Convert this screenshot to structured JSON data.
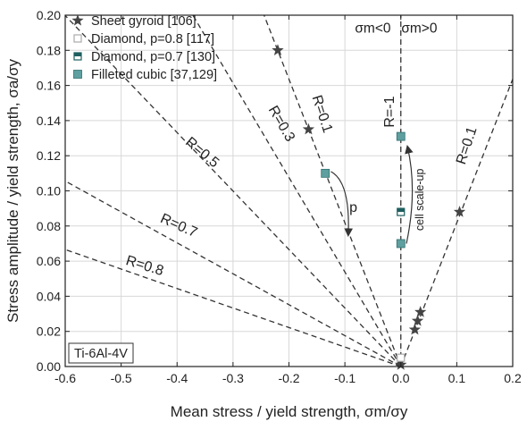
{
  "chart_data": {
    "type": "scatter",
    "xlabel": "Mean stress / yield strength, σm/σy",
    "ylabel": "Stress amplitude / yield strength, σa/σy",
    "xlim": [
      -0.6,
      0.2
    ],
    "ylim": [
      0.0,
      0.2
    ],
    "xticks": [
      -0.6,
      -0.5,
      -0.4,
      -0.3,
      -0.2,
      -0.1,
      0.0,
      0.1,
      0.2
    ],
    "yticks": [
      0.0,
      0.02,
      0.04,
      0.06,
      0.08,
      0.1,
      0.12,
      0.14,
      0.16,
      0.18,
      0.2
    ],
    "xtick_labels": [
      "-0.6",
      "-0.5",
      "-0.4",
      "-0.3",
      "-0.2",
      "-0.1",
      "0.0",
      "0.1",
      "0.2"
    ],
    "ytick_labels": [
      "0.00",
      "0.02",
      "0.04",
      "0.06",
      "0.08",
      "0.10",
      "0.12",
      "0.14",
      "0.16",
      "0.18",
      "0.20"
    ],
    "grid": true,
    "legend_position": "top-left",
    "material_label": "Ti-6Al-4V",
    "region_labels": [
      {
        "text": "σm<0",
        "x": -0.05,
        "y": 0.19
      },
      {
        "text": "σm>0",
        "x": 0.033,
        "y": 0.19
      }
    ],
    "r_lines": [
      {
        "R": -1,
        "label": "R=-1",
        "slope": null,
        "label_x": -0.012,
        "label_y": 0.145,
        "angle": -90
      },
      {
        "R": 0.1,
        "label": "R=0.1",
        "slope": 0.818,
        "label_x": 0.125,
        "label_y": 0.125,
        "angle": -72
      },
      {
        "R": 0.1,
        "label": "R=0.1",
        "slope": -0.818,
        "label_x": -0.148,
        "label_y": 0.143,
        "angle": 72
      },
      {
        "R": 0.3,
        "label": "R=0.3",
        "slope": -0.538,
        "label_x": -0.22,
        "label_y": 0.137,
        "angle": 60
      },
      {
        "R": 0.5,
        "label": "R=0.5",
        "slope": -0.333,
        "label_x": -0.36,
        "label_y": 0.12,
        "angle": 40
      },
      {
        "R": 0.7,
        "label": "R=0.7",
        "slope": -0.176,
        "label_x": -0.4,
        "label_y": 0.078,
        "angle": 24
      },
      {
        "R": 0.8,
        "label": "R=0.8",
        "slope": -0.111,
        "label_x": -0.46,
        "label_y": 0.055,
        "angle": 17
      }
    ],
    "series": [
      {
        "name": "Sheet gyroid [106]",
        "marker": "star",
        "color": "#444444",
        "points": [
          [
            -0.22,
            0.18
          ],
          [
            -0.165,
            0.135
          ],
          [
            0.105,
            0.088
          ],
          [
            0.035,
            0.031
          ],
          [
            0.03,
            0.026
          ],
          [
            0.025,
            0.021
          ],
          [
            0.0,
            0.001
          ]
        ]
      },
      {
        "name": "Diamond, p=0.8 [117]",
        "marker": "square-open",
        "color": "#aaaaaa",
        "points": [
          [
            0.0,
            0.005
          ]
        ]
      },
      {
        "name": "Diamond, p=0.7 [130]",
        "marker": "square-half",
        "color": "#1f5f5f",
        "points": [
          [
            0.0,
            0.088
          ]
        ]
      },
      {
        "name": "Filleted cubic [37,129]",
        "marker": "square-filled",
        "color": "#5f9f9f",
        "points": [
          [
            -0.135,
            0.11
          ],
          [
            0.0,
            0.131
          ],
          [
            0.0,
            0.07
          ]
        ]
      }
    ],
    "annotations": [
      {
        "text": "p",
        "x": -0.085,
        "y": 0.088
      },
      {
        "text": "cell scale-up",
        "x": 0.04,
        "y": 0.095
      }
    ]
  }
}
